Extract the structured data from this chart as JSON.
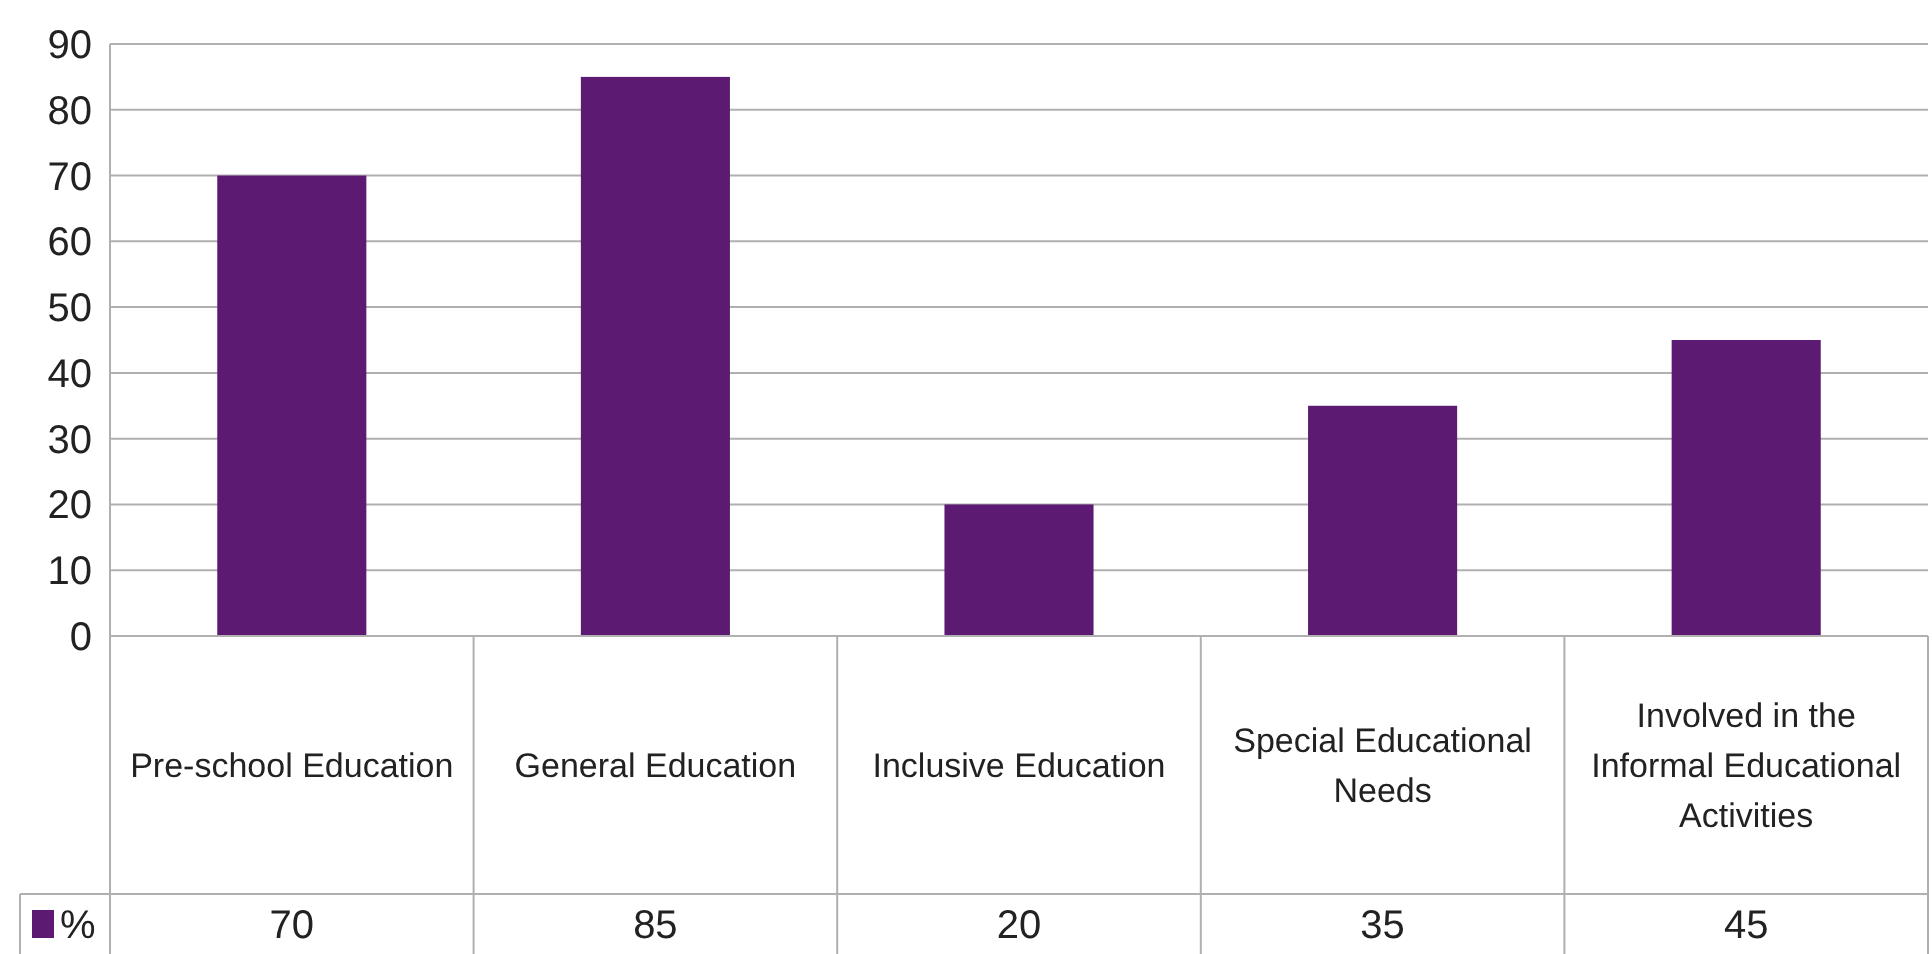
{
  "chart_data": {
    "type": "bar",
    "categories": [
      "Pre-school Education",
      "General Education",
      "Inclusive Education",
      "Special Educational Needs",
      "Involved in the Informal Educational Activities"
    ],
    "series": [
      {
        "name": "%",
        "color": "#5c1a72",
        "values": [
          70,
          85,
          20,
          35,
          45
        ]
      }
    ],
    "ylim": [
      0,
      90
    ],
    "yticks": [
      0,
      10,
      20,
      30,
      40,
      50,
      60,
      70,
      80,
      90
    ],
    "grid": "y",
    "data_labels": true,
    "legend": "bottom left"
  }
}
